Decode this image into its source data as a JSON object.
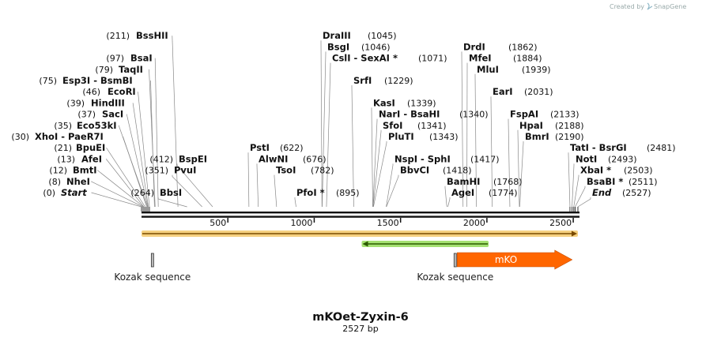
{
  "credit": {
    "created_by": "Created by",
    "brand": "SnapGene"
  },
  "title": {
    "name": "mKOet-Zyxin-6",
    "length": "2527 bp"
  },
  "chart_data": {
    "type": "plasmid-map",
    "total_bp": 2527,
    "ticks": [
      500,
      1000,
      1500,
      2000,
      2500
    ],
    "tick_labels": [
      "500",
      "1000",
      "1500",
      "2000",
      "2500"
    ],
    "enzymes": [
      {
        "name": "Start",
        "pos": 0,
        "italic": true
      },
      {
        "name": "NheI",
        "pos": 8
      },
      {
        "name": "BmtI",
        "pos": 12
      },
      {
        "name": "AfeI",
        "pos": 13
      },
      {
        "name": "BpuEI",
        "pos": 21
      },
      {
        "name": "XhoI",
        "name2": "PaeR7I",
        "pos": 30
      },
      {
        "name": "Eco53kI",
        "pos": 35
      },
      {
        "name": "SacI",
        "pos": 37
      },
      {
        "name": "HindIII",
        "pos": 39
      },
      {
        "name": "EcoRI",
        "pos": 46
      },
      {
        "name": "Esp3I",
        "name2": "BsmBI",
        "pos": 75
      },
      {
        "name": "TaqII",
        "pos": 79
      },
      {
        "name": "BsaI",
        "pos": 97
      },
      {
        "name": "BssHII",
        "pos": 211
      },
      {
        "name": "BbsI",
        "pos": 264
      },
      {
        "name": "PvuI",
        "pos": 351
      },
      {
        "name": "BspEI",
        "pos": 412
      },
      {
        "name": "PstI",
        "pos": 622
      },
      {
        "name": "AlwNI",
        "pos": 676
      },
      {
        "name": "TsoI",
        "pos": 782
      },
      {
        "name": "PfoI",
        "star": true,
        "pos": 895
      },
      {
        "name": "DraIII",
        "pos": 1045
      },
      {
        "name": "BsgI",
        "pos": 1046
      },
      {
        "name": "CslI",
        "name2": "SexAI",
        "star": true,
        "pos": 1071
      },
      {
        "name": "SrfI",
        "pos": 1229
      },
      {
        "name": "KasI",
        "pos": 1339
      },
      {
        "name": "NarI",
        "name2": "BsaHI",
        "pos": 1340
      },
      {
        "name": "SfoI",
        "pos": 1341
      },
      {
        "name": "PluTI",
        "pos": 1343
      },
      {
        "name": "NspI",
        "name2": "SphI",
        "pos": 1417
      },
      {
        "name": "BbvCI",
        "pos": 1418
      },
      {
        "name": "BamHI",
        "pos": 1768
      },
      {
        "name": "AgeI",
        "pos": 1774
      },
      {
        "name": "DrdI",
        "pos": 1862
      },
      {
        "name": "MfeI",
        "pos": 1884
      },
      {
        "name": "MluI",
        "pos": 1939
      },
      {
        "name": "EarI",
        "pos": 2031
      },
      {
        "name": "FspAI",
        "pos": 2133
      },
      {
        "name": "HpaI",
        "pos": 2188
      },
      {
        "name": "BmrI",
        "pos": 2190
      },
      {
        "name": "TatI",
        "name2": "BsrGI",
        "pos": 2481
      },
      {
        "name": "NotI",
        "pos": 2493
      },
      {
        "name": "XbaI",
        "star": true,
        "pos": 2503
      },
      {
        "name": "BsaBI",
        "star": true,
        "pos": 2511
      },
      {
        "name": "End",
        "pos": 2527,
        "italic": true
      }
    ],
    "features": [
      {
        "name": "Kozak sequence",
        "start": 52,
        "end": 61,
        "type": "regulatory",
        "strand": 0
      },
      {
        "name": "Kozak sequence",
        "start": 1805,
        "end": 1814,
        "type": "regulatory",
        "strand": 0
      },
      {
        "name": "mKO",
        "start": 1814,
        "end": 2480,
        "type": "cds",
        "strand": 1,
        "color": "#ff6600"
      },
      {
        "name": "",
        "start": 0,
        "end": 2527,
        "type": "orf",
        "strand": 1,
        "color": "#f5c96b"
      },
      {
        "name": "",
        "start": 1275,
        "end": 2010,
        "type": "orf",
        "strand": -1,
        "color": "#8fd94f"
      }
    ]
  }
}
